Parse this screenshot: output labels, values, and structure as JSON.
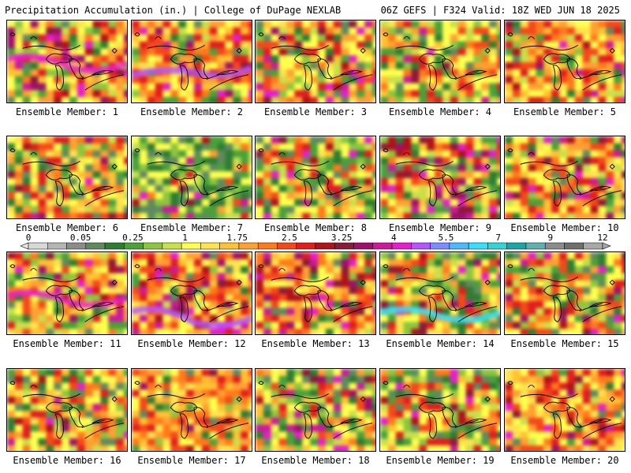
{
  "header": {
    "left": "Precipitation Accumulation (in.) | College of DuPage NEXLAB",
    "right": "06Z GEFS | F324 Valid: 18Z WED JUN 18 2025"
  },
  "label_prefix": "Ensemble Member:",
  "panels": [
    {
      "member": "1",
      "dominant": "red-orange with magenta band (west)"
    },
    {
      "member": "2",
      "dominant": "orange/red with magenta (northwest)"
    },
    {
      "member": "3",
      "dominant": "green/orange with red"
    },
    {
      "member": "4",
      "dominant": "green/orange mix"
    },
    {
      "member": "5",
      "dominant": "orange/red with green (north)"
    },
    {
      "member": "6",
      "dominant": "orange/green"
    },
    {
      "member": "7",
      "dominant": "green"
    },
    {
      "member": "8",
      "dominant": "green/orange with magenta (west)"
    },
    {
      "member": "9",
      "dominant": "red/magenta and green"
    },
    {
      "member": "10",
      "dominant": "orange/red with magenta (north)"
    },
    {
      "member": "11",
      "dominant": "orange/green with magenta (south)"
    },
    {
      "member": "12",
      "dominant": "red with magenta band (south)"
    },
    {
      "member": "13",
      "dominant": "red/magenta"
    },
    {
      "member": "14",
      "dominant": "green/orange with cyan (southwest)"
    },
    {
      "member": "15",
      "dominant": "orange/green"
    },
    {
      "member": "16",
      "dominant": "orange/red with green"
    },
    {
      "member": "17",
      "dominant": "orange/yellow with red"
    },
    {
      "member": "18",
      "dominant": "green/orange with magenta"
    },
    {
      "member": "19",
      "dominant": "green/orange"
    },
    {
      "member": "20",
      "dominant": "red/orange"
    }
  ],
  "legend": {
    "labels": [
      "0",
      "0.05",
      "0.25",
      "1",
      "1.75",
      "2.5",
      "3.25",
      "4",
      "5.5",
      "7",
      "9",
      "12"
    ],
    "colors": [
      "#d8d8d8",
      "#b5b5b5",
      "#8c8c8c",
      "#5f8a5f",
      "#2e7d32",
      "#4aa13a",
      "#8cc63f",
      "#c8e04a",
      "#ffff4d",
      "#ffe34d",
      "#ffc233",
      "#ffa033",
      "#ff7a1a",
      "#f5481a",
      "#e01e1e",
      "#b0121a",
      "#8b1a3a",
      "#a0106a",
      "#cc1a9a",
      "#e61ecc",
      "#b455ff",
      "#7a8cff",
      "#4db8ff",
      "#33e0ff",
      "#33d4d4",
      "#1aa6a6",
      "#5fb0b0",
      "#8c8c8c",
      "#6e6e6e",
      "#a8a8a8"
    ]
  }
}
